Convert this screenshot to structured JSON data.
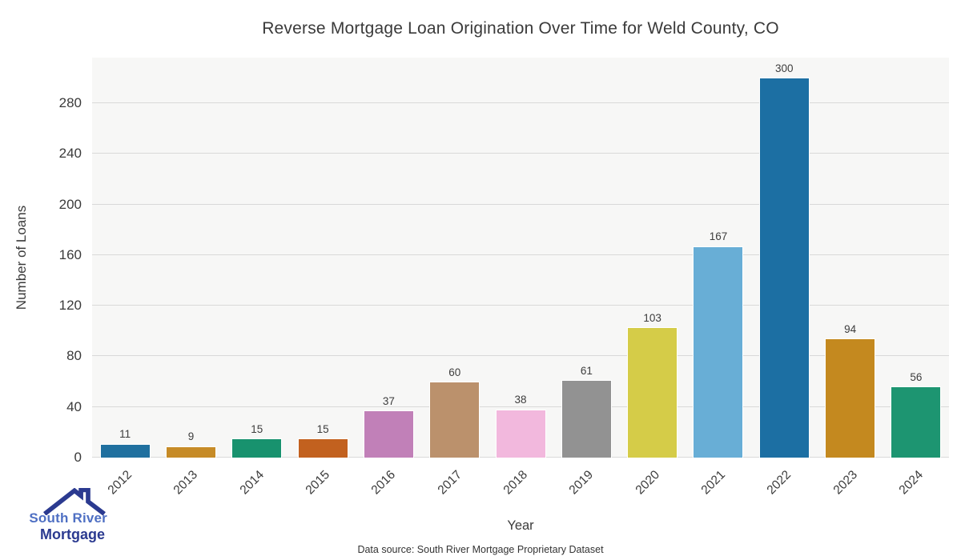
{
  "title": "Reverse Mortgage Loan Origination Over Time for Weld County, CO",
  "chart_data": {
    "type": "bar",
    "title": "Reverse Mortgage Loan Origination Over Time for Weld County, CO",
    "xlabel": "Year",
    "ylabel": "Number of Loans",
    "categories": [
      "2012",
      "2013",
      "2014",
      "2015",
      "2016",
      "2017",
      "2018",
      "2019",
      "2020",
      "2021",
      "2022",
      "2023",
      "2024"
    ],
    "values": [
      11,
      9,
      15,
      15,
      37,
      60,
      38,
      61,
      103,
      167,
      300,
      94,
      56
    ],
    "bar_colors": [
      "#20709f",
      "#c68b27",
      "#18926e",
      "#c2611f",
      "#c180b8",
      "#bb916c",
      "#f2b8dd",
      "#929292",
      "#d5cc48",
      "#68aed6",
      "#1c6fa3",
      "#c4891f",
      "#1d9571"
    ],
    "bar_labels_shown": true,
    "yticks": [
      0,
      40,
      80,
      120,
      160,
      200,
      240,
      280
    ],
    "ylim": [
      0,
      316
    ],
    "grid": "horizontal",
    "gridline_color": "#d9d9d9",
    "plot_background": "#f7f7f6",
    "legend": "none"
  },
  "axis": {
    "y_label": "Number of Loans",
    "x_label": "Year"
  },
  "footer": {
    "source_note": "Data source: South River Mortgage Proprietary Dataset"
  },
  "logo": {
    "line1": "South River",
    "line2": "Mortgage",
    "line1_color": "#4e6fc3",
    "line2_color": "#2b3a90",
    "roof_color": "#2b3a90"
  }
}
